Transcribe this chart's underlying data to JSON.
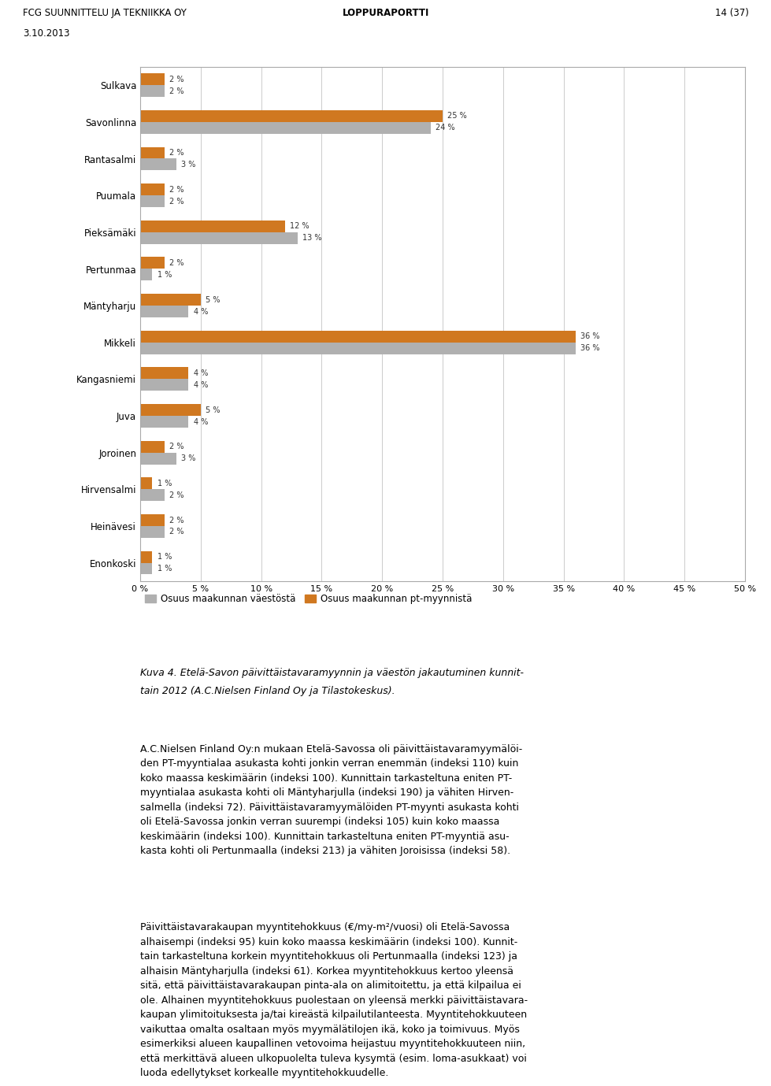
{
  "categories": [
    "Sulkava",
    "Savonlinna",
    "Rantasalmi",
    "Puumala",
    "Pieksämäki",
    "Pertunmaa",
    "Mäntyharju",
    "Mikkeli",
    "Kangasniemi",
    "Juva",
    "Joroinen",
    "Hirvensalmi",
    "Heinävesi",
    "Enonkoski"
  ],
  "vaesto": [
    2,
    24,
    3,
    2,
    13,
    1,
    4,
    36,
    4,
    4,
    3,
    2,
    2,
    1
  ],
  "pt_myynti": [
    2,
    25,
    2,
    2,
    12,
    2,
    5,
    36,
    4,
    5,
    2,
    1,
    2,
    1
  ],
  "color_vaesto": "#b0b0b0",
  "color_pt": "#d07820",
  "legend_vaesto": "Osuus maakunnan väestöstä",
  "legend_pt": "Osuus maakunnan pt-myynnistä",
  "xlim": [
    0,
    50
  ],
  "xticks": [
    0,
    5,
    10,
    15,
    20,
    25,
    30,
    35,
    40,
    45,
    50
  ],
  "header_left": "FCG SUUNNITTELU JA TEKNIIKKA OY",
  "header_center": "LOPPURAPORTTI",
  "header_right": "14 (37)",
  "header_date": "3.10.2013",
  "caption_line1": "Kuva 4. Etelä-Savon päivittäistavaramyynnin ja väestön jakautuminen kunnit-",
  "caption_line2": "tain 2012 (A.C.Nielsen Finland Oy ja Tilastokeskus).",
  "body_text": "A.C.Nielsen Finland Oy:n mukaan Etelä-Savossa oli päivittäistavaramyymälöi-\nden PT-myyntialaa asukasta kohti jonkin verran enemmän (indeksi 110) kuin\nkoko maassa keskimäärin (indeksi 100). Kunnittain tarkasteltuna eniten PT-\nmyyntialaa asukasta kohti oli Mäntyharjulla (indeksi 190) ja vähiten Hirven-\nsalmella (indeksi 72). Päivittäistavaramyymälöiden PT-myynti asukasta kohti\noli Etelä-Savossa jonkin verran suurempi (indeksi 105) kuin koko maassa\nkeskimäärin (indeksi 100). Kunnittain tarkasteltuna eniten PT-myyntiä asu-\nkasta kohti oli Pertunmaalla (indeksi 213) ja vähiten Joroisissa (indeksi 58).",
  "body_text2": "Päivittäistavarakaupan myyntitehokkuus (€/my-m²/vuosi) oli Etelä-Savossa\nalhaisempi (indeksi 95) kuin koko maassa keskimäärin (indeksi 100). Kunnit-\ntain tarkasteltuna korkein myyntitehokkuus oli Pertunmaalla (indeksi 123) ja\nalhaisin Mäntyharjulla (indeksi 61). Korkea myyntitehokkuus kertoo yleensä\nsitä, että päivittäistavarakaupan pinta-ala on alimitoitettu, ja että kilpailua ei\nole. Alhainen myyntitehokkuus puolestaan on yleensä merkki päivittäistavara-\nkaupan ylimitoituksesta ja/tai kireästä kilpailutilanteesta. Myyntitehokkuuteen\nvaikuttaa omalta osaltaan myös myymälätilojen ikä, koko ja toimivuus. Myös\nesimerkiksi alueen kaupallinen vetovoima heijastuu myyntitehokkuuteen niin,\nettä merkittävä alueen ulkopuolelta tuleva kysymtä (esim. loma-asukkaat) voi\nluoda edellytykset korkealle myyntitehokkuudelle."
}
